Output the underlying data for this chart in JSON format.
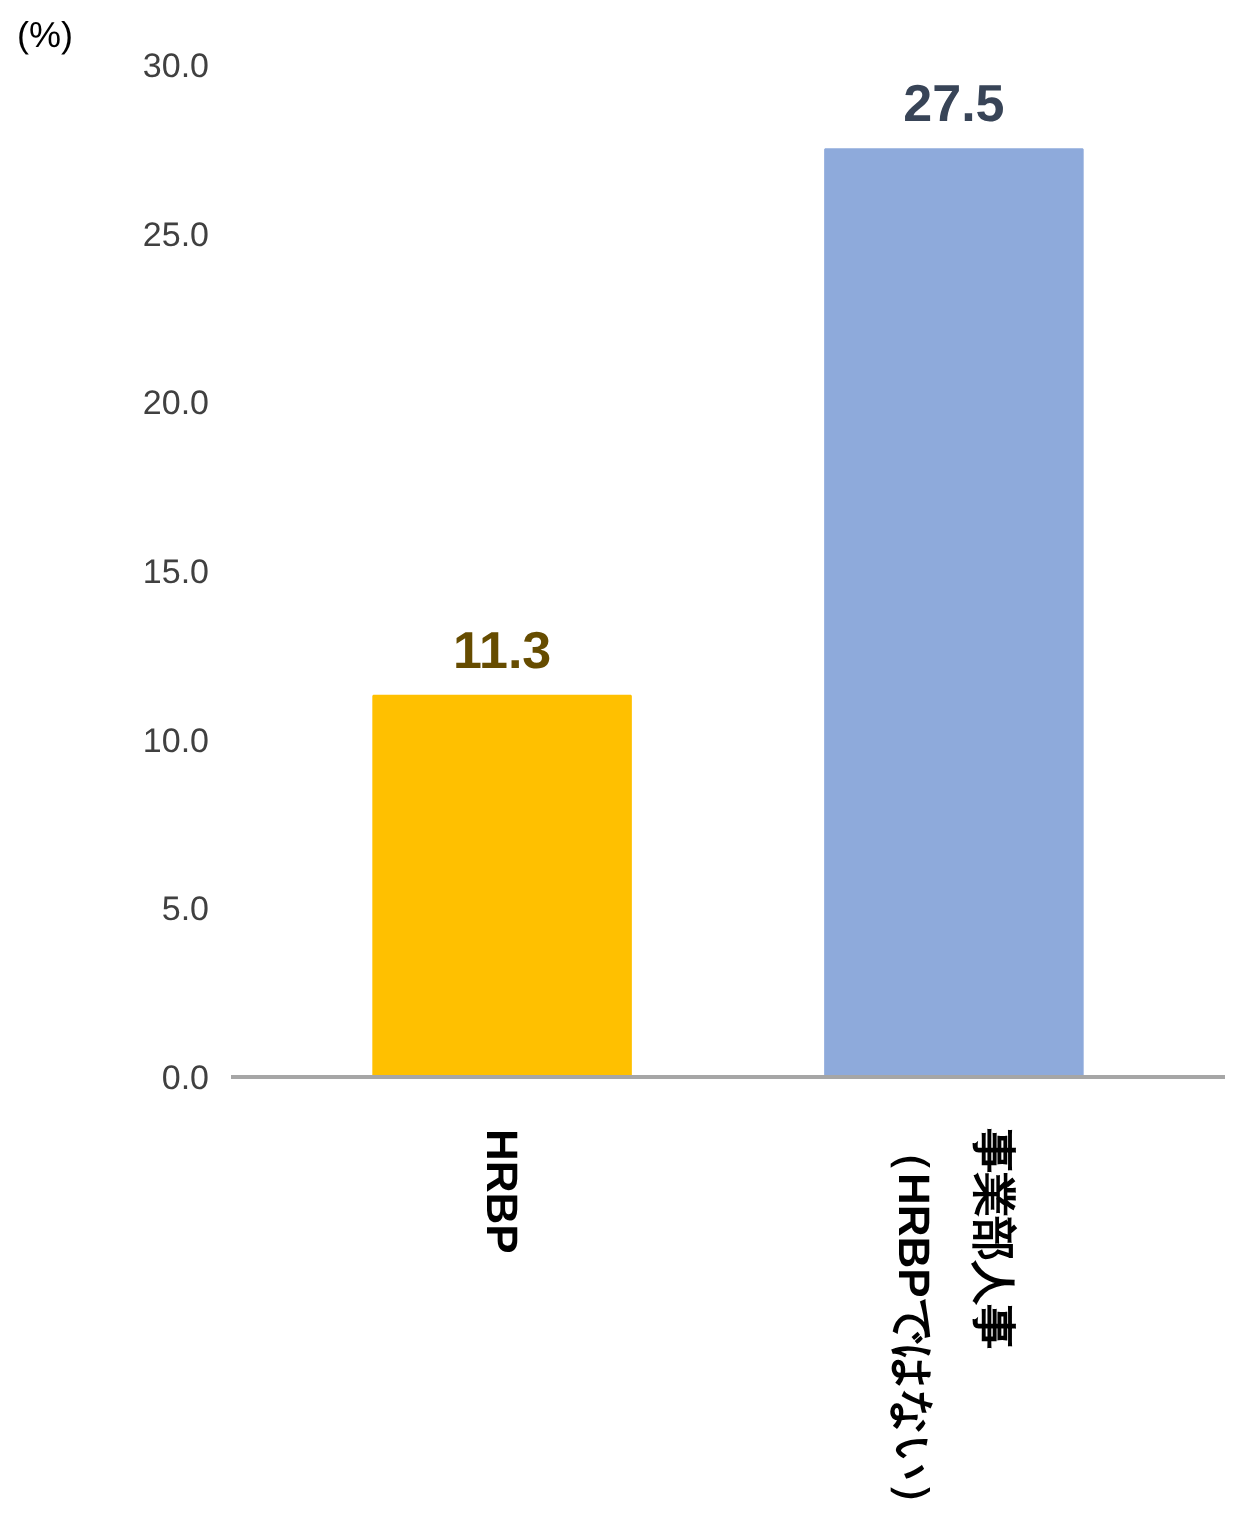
{
  "chart_data": {
    "type": "bar",
    "ylabel": "(%)",
    "categories": [
      "HRBP",
      "事業部人事（HRBPではない）"
    ],
    "values": [
      11.3,
      27.5
    ],
    "colors": [
      "#ffc000",
      "#8eaadb"
    ],
    "ylim": [
      0,
      30
    ],
    "yticks": [
      {
        "value": 0,
        "label": "0.0"
      },
      {
        "value": 5,
        "label": "5.0"
      },
      {
        "value": 10,
        "label": "10.0"
      },
      {
        "value": 15,
        "label": "15.0"
      },
      {
        "value": 20,
        "label": "20.0"
      },
      {
        "value": 25,
        "label": "25.0"
      },
      {
        "value": 30,
        "label": "30.0"
      }
    ],
    "data_labels": true,
    "grid": false
  }
}
